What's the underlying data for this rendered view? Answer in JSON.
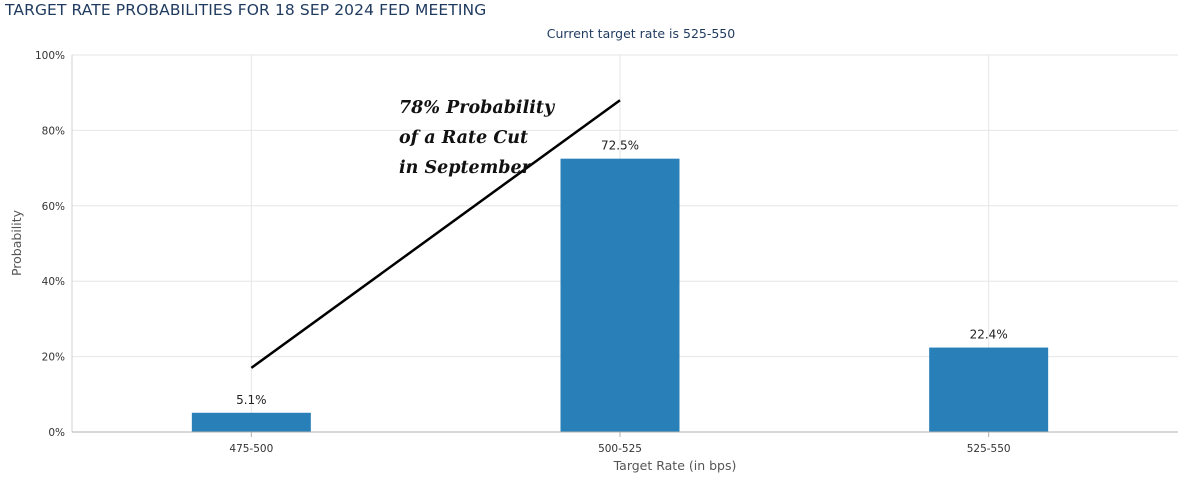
{
  "title": "TARGET RATE PROBABILITIES FOR 18 SEP 2024 FED MEETING",
  "chart_data": {
    "type": "bar",
    "subtitle": "Current target rate is 525-550",
    "xlabel": "Target Rate (in bps)",
    "ylabel": "Probability",
    "categories": [
      "475-500",
      "500-525",
      "525-550"
    ],
    "values": [
      5.1,
      72.5,
      22.4
    ],
    "data_labels": [
      "5.1%",
      "72.5%",
      "22.4%"
    ],
    "ylim": [
      0,
      100
    ],
    "yticks": [
      "0%",
      "20%",
      "40%",
      "60%",
      "80%",
      "100%"
    ],
    "ytick_values": [
      0,
      20,
      40,
      60,
      80,
      100
    ],
    "grid": true,
    "bar_color": "#2980b9",
    "annotation": {
      "lines": [
        "78% Probability",
        "of a Rate Cut",
        "in September"
      ],
      "arrow_from": {
        "category": "475-500",
        "value": 17
      },
      "arrow_to": {
        "category": "500-525",
        "value": 88
      }
    }
  }
}
